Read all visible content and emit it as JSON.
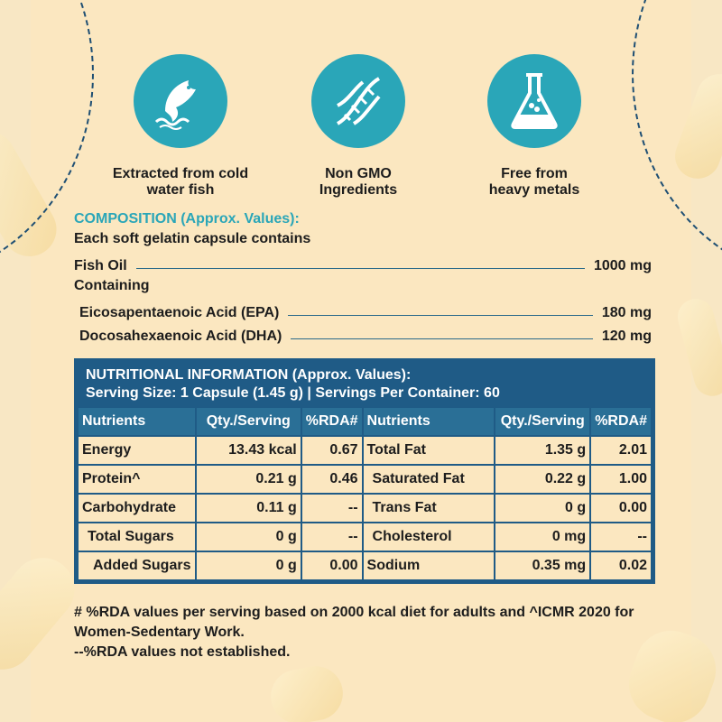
{
  "features": [
    {
      "icon": "fish-icon",
      "label_line1": "Extracted from cold",
      "label_line2": "water fish"
    },
    {
      "icon": "dna-icon",
      "label_line1": "Non GMO",
      "label_line2": "Ingredients"
    },
    {
      "icon": "flask-icon",
      "label_line1": "Free from",
      "label_line2": "heavy metals"
    }
  ],
  "composition": {
    "title": "COMPOSITION (Approx. Values):",
    "subtitle": "Each soft gelatin capsule contains",
    "fish_oil": {
      "label": "Fish Oil",
      "value": "1000 mg"
    },
    "containing": "Containing",
    "epa": {
      "label": "Eicosapentaenoic Acid (EPA)",
      "value": "180 mg"
    },
    "dha": {
      "label": "Docosahexaenoic Acid (DHA)",
      "value": "120 mg"
    }
  },
  "nutrition": {
    "title": "NUTRITIONAL INFORMATION (Approx. Values):",
    "serving": "Serving Size: 1 Capsule (1.45 g) | Servings Per Container: 60",
    "headers": {
      "nutrients": "Nutrients",
      "qty": "Qty./Serving",
      "rda": "%RDA#"
    },
    "left": [
      {
        "name": "Energy",
        "qty": "13.43 kcal",
        "rda": "0.67"
      },
      {
        "name": "Protein^",
        "qty": "0.21 g",
        "rda": "0.46"
      },
      {
        "name": "Carbohydrate",
        "qty": "0.11 g",
        "rda": "--"
      },
      {
        "name": "Total Sugars",
        "qty": "0 g",
        "rda": "--"
      },
      {
        "name": "Added Sugars",
        "qty": "0 g",
        "rda": "0.00"
      }
    ],
    "right": [
      {
        "name": "Total Fat",
        "qty": "1.35 g",
        "rda": "2.01"
      },
      {
        "name": "Saturated Fat",
        "qty": "0.22 g",
        "rda": "1.00"
      },
      {
        "name": "Trans Fat",
        "qty": "0 g",
        "rda": "0.00"
      },
      {
        "name": "Cholesterol",
        "qty": "0 mg",
        "rda": "--"
      },
      {
        "name": "Sodium",
        "qty": "0.35 mg",
        "rda": "0.02"
      }
    ]
  },
  "footnotes": {
    "line1": "# %RDA values per serving based on 2000 kcal diet for adults and ^ICMR 2020 for",
    "line2": "Women-Sedentary Work.",
    "line3": "--%RDA values not established."
  },
  "colors": {
    "accent": "#2aa6b8",
    "navy": "#1f5b86",
    "background": "#fbe7c0"
  }
}
